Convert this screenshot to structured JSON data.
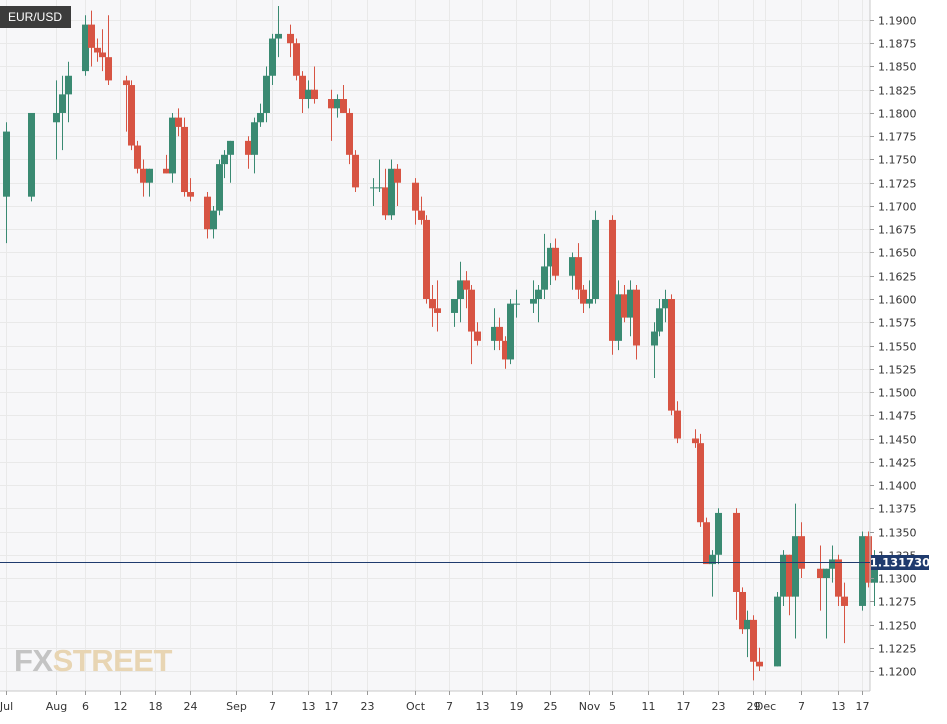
{
  "symbol": "EUR/USD",
  "logo": {
    "fx": "FX",
    "street": "STREET"
  },
  "last_price_label": "1.131730",
  "colors": {
    "up": "#3a8a72",
    "down": "#d75443",
    "grid": "#e9e9e9",
    "price_line": "#1f3b6e",
    "background": "#f7f7f9",
    "axis_text": "#333333"
  },
  "chart_data": {
    "type": "candlestick",
    "title": "",
    "xlabel": "",
    "ylabel": "",
    "ylim": [
      1.1185,
      1.1915
    ],
    "y_ticks": [
      1.19,
      1.1875,
      1.185,
      1.1825,
      1.18,
      1.1775,
      1.175,
      1.1725,
      1.17,
      1.1675,
      1.165,
      1.1625,
      1.16,
      1.1575,
      1.155,
      1.1525,
      1.15,
      1.1475,
      1.145,
      1.1425,
      1.14,
      1.1375,
      1.135,
      1.1325,
      1.13,
      1.1275,
      1.125,
      1.1225,
      1.12
    ],
    "y_tick_decimals": 4,
    "x_ticks": [
      {
        "label": "Jul",
        "date": "2018-07-30"
      },
      {
        "label": "Aug",
        "date": "2018-08-01"
      },
      {
        "label": "6",
        "date": "2018-08-06"
      },
      {
        "label": "12",
        "date": "2018-08-12"
      },
      {
        "label": "18",
        "date": "2018-08-18"
      },
      {
        "label": "24",
        "date": "2018-08-24"
      },
      {
        "label": "Sep",
        "date": "2018-09-01"
      },
      {
        "label": "7",
        "date": "2018-09-07"
      },
      {
        "label": "13",
        "date": "2018-09-13"
      },
      {
        "label": "17",
        "date": "2018-09-17"
      },
      {
        "label": "23",
        "date": "2018-09-23"
      },
      {
        "label": "Oct",
        "date": "2018-10-01"
      },
      {
        "label": "7",
        "date": "2018-10-07"
      },
      {
        "label": "13",
        "date": "2018-10-13"
      },
      {
        "label": "19",
        "date": "2018-10-19"
      },
      {
        "label": "25",
        "date": "2018-10-25"
      },
      {
        "label": "Nov",
        "date": "2018-11-01"
      },
      {
        "label": "5",
        "date": "2018-11-05"
      },
      {
        "label": "11",
        "date": "2018-11-11"
      },
      {
        "label": "17",
        "date": "2018-11-17"
      },
      {
        "label": "23",
        "date": "2018-11-23"
      },
      {
        "label": "29",
        "date": "2018-11-29"
      },
      {
        "label": "Dec",
        "date": "2018-12-01"
      },
      {
        "label": "7",
        "date": "2018-12-07"
      },
      {
        "label": "13",
        "date": "2018-12-13"
      },
      {
        "label": "17",
        "date": "2018-12-17"
      }
    ],
    "last_price": 1.13173,
    "candles": [
      {
        "date": "2018-07-30",
        "o": 1.171,
        "h": 1.179,
        "l": 1.166,
        "c": 1.178
      },
      {
        "date": "2018-07-31",
        "o": 1.171,
        "h": 1.18,
        "l": 1.1705,
        "c": 1.18
      },
      {
        "date": "2018-08-01",
        "o": 1.179,
        "h": 1.1835,
        "l": 1.175,
        "c": 1.18
      },
      {
        "date": "2018-08-02",
        "o": 1.18,
        "h": 1.184,
        "l": 1.176,
        "c": 1.182
      },
      {
        "date": "2018-08-03",
        "o": 1.182,
        "h": 1.1855,
        "l": 1.179,
        "c": 1.184
      },
      {
        "date": "2018-08-06",
        "o": 1.1845,
        "h": 1.1905,
        "l": 1.184,
        "c": 1.1895
      },
      {
        "date": "2018-08-07",
        "o": 1.1895,
        "h": 1.191,
        "l": 1.185,
        "c": 1.187
      },
      {
        "date": "2018-08-08",
        "o": 1.187,
        "h": 1.188,
        "l": 1.1855,
        "c": 1.1865
      },
      {
        "date": "2018-08-09",
        "o": 1.1865,
        "h": 1.189,
        "l": 1.1845,
        "c": 1.186
      },
      {
        "date": "2018-08-10",
        "o": 1.186,
        "h": 1.1905,
        "l": 1.183,
        "c": 1.1835
      },
      {
        "date": "2018-08-13",
        "o": 1.1835,
        "h": 1.184,
        "l": 1.178,
        "c": 1.183
      },
      {
        "date": "2018-08-14",
        "o": 1.183,
        "h": 1.1835,
        "l": 1.176,
        "c": 1.1765
      },
      {
        "date": "2018-08-15",
        "o": 1.1765,
        "h": 1.177,
        "l": 1.1735,
        "c": 1.174
      },
      {
        "date": "2018-08-16",
        "o": 1.174,
        "h": 1.175,
        "l": 1.171,
        "c": 1.1725
      },
      {
        "date": "2018-08-17",
        "o": 1.1725,
        "h": 1.174,
        "l": 1.171,
        "c": 1.174
      },
      {
        "date": "2018-08-20",
        "o": 1.174,
        "h": 1.1755,
        "l": 1.1735,
        "c": 1.1735
      },
      {
        "date": "2018-08-21",
        "o": 1.1735,
        "h": 1.18,
        "l": 1.1725,
        "c": 1.1795
      },
      {
        "date": "2018-08-22",
        "o": 1.1795,
        "h": 1.1805,
        "l": 1.1775,
        "c": 1.1785
      },
      {
        "date": "2018-08-23",
        "o": 1.1785,
        "h": 1.1795,
        "l": 1.171,
        "c": 1.1715
      },
      {
        "date": "2018-08-24",
        "o": 1.1715,
        "h": 1.173,
        "l": 1.1705,
        "c": 1.171
      },
      {
        "date": "2018-08-27",
        "o": 1.171,
        "h": 1.1715,
        "l": 1.1665,
        "c": 1.1675
      },
      {
        "date": "2018-08-28",
        "o": 1.1675,
        "h": 1.17,
        "l": 1.1665,
        "c": 1.1695
      },
      {
        "date": "2018-08-29",
        "o": 1.1695,
        "h": 1.175,
        "l": 1.169,
        "c": 1.1745
      },
      {
        "date": "2018-08-30",
        "o": 1.1745,
        "h": 1.176,
        "l": 1.173,
        "c": 1.1755
      },
      {
        "date": "2018-08-31",
        "o": 1.1755,
        "h": 1.177,
        "l": 1.1725,
        "c": 1.177
      },
      {
        "date": "2018-09-03",
        "o": 1.177,
        "h": 1.1775,
        "l": 1.174,
        "c": 1.1755
      },
      {
        "date": "2018-09-04",
        "o": 1.1755,
        "h": 1.1795,
        "l": 1.1735,
        "c": 1.179
      },
      {
        "date": "2018-09-05",
        "o": 1.179,
        "h": 1.181,
        "l": 1.1785,
        "c": 1.18
      },
      {
        "date": "2018-09-06",
        "o": 1.18,
        "h": 1.185,
        "l": 1.179,
        "c": 1.184
      },
      {
        "date": "2018-09-07",
        "o": 1.184,
        "h": 1.1885,
        "l": 1.183,
        "c": 1.188
      },
      {
        "date": "2018-09-08",
        "o": 1.188,
        "h": 1.1915,
        "l": 1.186,
        "c": 1.1885
      },
      {
        "date": "2018-09-10",
        "o": 1.1885,
        "h": 1.1895,
        "l": 1.186,
        "c": 1.1875
      },
      {
        "date": "2018-09-11",
        "o": 1.1875,
        "h": 1.188,
        "l": 1.1835,
        "c": 1.184
      },
      {
        "date": "2018-09-12",
        "o": 1.184,
        "h": 1.1845,
        "l": 1.18,
        "c": 1.1815
      },
      {
        "date": "2018-09-13",
        "o": 1.1815,
        "h": 1.1835,
        "l": 1.1805,
        "c": 1.1825
      },
      {
        "date": "2018-09-14",
        "o": 1.1825,
        "h": 1.185,
        "l": 1.181,
        "c": 1.1815
      },
      {
        "date": "2018-09-17",
        "o": 1.1815,
        "h": 1.1825,
        "l": 1.177,
        "c": 1.1805
      },
      {
        "date": "2018-09-18",
        "o": 1.1805,
        "h": 1.182,
        "l": 1.1795,
        "c": 1.1815
      },
      {
        "date": "2018-09-19",
        "o": 1.1815,
        "h": 1.183,
        "l": 1.18,
        "c": 1.18
      },
      {
        "date": "2018-09-20",
        "o": 1.18,
        "h": 1.1805,
        "l": 1.1745,
        "c": 1.1755
      },
      {
        "date": "2018-09-21",
        "o": 1.1755,
        "h": 1.176,
        "l": 1.1715,
        "c": 1.172
      },
      {
        "date": "2018-09-24",
        "o": 1.172,
        "h": 1.173,
        "l": 1.17,
        "c": 1.172
      },
      {
        "date": "2018-09-25",
        "o": 1.172,
        "h": 1.175,
        "l": 1.1715,
        "c": 1.172
      },
      {
        "date": "2018-09-26",
        "o": 1.172,
        "h": 1.174,
        "l": 1.1685,
        "c": 1.169
      },
      {
        "date": "2018-09-27",
        "o": 1.169,
        "h": 1.175,
        "l": 1.1685,
        "c": 1.174
      },
      {
        "date": "2018-09-28",
        "o": 1.174,
        "h": 1.1745,
        "l": 1.17,
        "c": 1.1725
      },
      {
        "date": "2018-10-01",
        "o": 1.1725,
        "h": 1.173,
        "l": 1.168,
        "c": 1.1695
      },
      {
        "date": "2018-10-02",
        "o": 1.1695,
        "h": 1.171,
        "l": 1.168,
        "c": 1.1685
      },
      {
        "date": "2018-10-03",
        "o": 1.1685,
        "h": 1.169,
        "l": 1.1595,
        "c": 1.16
      },
      {
        "date": "2018-10-04",
        "o": 1.16,
        "h": 1.1615,
        "l": 1.157,
        "c": 1.159
      },
      {
        "date": "2018-10-05",
        "o": 1.159,
        "h": 1.162,
        "l": 1.1565,
        "c": 1.1585
      },
      {
        "date": "2018-10-08",
        "o": 1.1585,
        "h": 1.16,
        "l": 1.157,
        "c": 1.16
      },
      {
        "date": "2018-10-09",
        "o": 1.16,
        "h": 1.164,
        "l": 1.1575,
        "c": 1.162
      },
      {
        "date": "2018-10-10",
        "o": 1.162,
        "h": 1.163,
        "l": 1.159,
        "c": 1.161
      },
      {
        "date": "2018-10-11",
        "o": 1.161,
        "h": 1.1615,
        "l": 1.153,
        "c": 1.1565
      },
      {
        "date": "2018-10-12",
        "o": 1.1565,
        "h": 1.1575,
        "l": 1.155,
        "c": 1.1555
      },
      {
        "date": "2018-10-15",
        "o": 1.1555,
        "h": 1.159,
        "l": 1.1545,
        "c": 1.157
      },
      {
        "date": "2018-10-16",
        "o": 1.157,
        "h": 1.158,
        "l": 1.1545,
        "c": 1.1555
      },
      {
        "date": "2018-10-17",
        "o": 1.1555,
        "h": 1.156,
        "l": 1.1525,
        "c": 1.1535
      },
      {
        "date": "2018-10-18",
        "o": 1.1535,
        "h": 1.16,
        "l": 1.153,
        "c": 1.1595
      },
      {
        "date": "2018-10-19",
        "o": 1.1595,
        "h": 1.161,
        "l": 1.158,
        "c": 1.1595
      },
      {
        "date": "2018-10-22",
        "o": 1.1595,
        "h": 1.162,
        "l": 1.1585,
        "c": 1.16
      },
      {
        "date": "2018-10-23",
        "o": 1.16,
        "h": 1.1615,
        "l": 1.1575,
        "c": 1.161
      },
      {
        "date": "2018-10-24",
        "o": 1.161,
        "h": 1.167,
        "l": 1.16,
        "c": 1.1635
      },
      {
        "date": "2018-10-25",
        "o": 1.1635,
        "h": 1.166,
        "l": 1.1615,
        "c": 1.1655
      },
      {
        "date": "2018-10-26",
        "o": 1.1655,
        "h": 1.1665,
        "l": 1.162,
        "c": 1.1625
      },
      {
        "date": "2018-10-29",
        "o": 1.1625,
        "h": 1.165,
        "l": 1.161,
        "c": 1.1645
      },
      {
        "date": "2018-10-30",
        "o": 1.1645,
        "h": 1.166,
        "l": 1.16,
        "c": 1.161
      },
      {
        "date": "2018-10-31",
        "o": 1.161,
        "h": 1.1615,
        "l": 1.1585,
        "c": 1.1595
      },
      {
        "date": "2018-11-01",
        "o": 1.1595,
        "h": 1.162,
        "l": 1.159,
        "c": 1.16
      },
      {
        "date": "2018-11-02",
        "o": 1.16,
        "h": 1.1695,
        "l": 1.1595,
        "c": 1.1685
      },
      {
        "date": "2018-11-05",
        "o": 1.1685,
        "h": 1.169,
        "l": 1.154,
        "c": 1.1555
      },
      {
        "date": "2018-11-06",
        "o": 1.1555,
        "h": 1.162,
        "l": 1.1545,
        "c": 1.1605
      },
      {
        "date": "2018-11-07",
        "o": 1.1605,
        "h": 1.1615,
        "l": 1.1575,
        "c": 1.158
      },
      {
        "date": "2018-11-08",
        "o": 1.158,
        "h": 1.162,
        "l": 1.156,
        "c": 1.161
      },
      {
        "date": "2018-11-09",
        "o": 1.161,
        "h": 1.1615,
        "l": 1.1535,
        "c": 1.155
      },
      {
        "date": "2018-11-12",
        "o": 1.155,
        "h": 1.1575,
        "l": 1.1515,
        "c": 1.1565
      },
      {
        "date": "2018-11-13",
        "o": 1.1565,
        "h": 1.16,
        "l": 1.156,
        "c": 1.159
      },
      {
        "date": "2018-11-14",
        "o": 1.159,
        "h": 1.161,
        "l": 1.1575,
        "c": 1.16
      },
      {
        "date": "2018-11-15",
        "o": 1.16,
        "h": 1.1605,
        "l": 1.1475,
        "c": 1.148
      },
      {
        "date": "2018-11-16",
        "o": 1.148,
        "h": 1.149,
        "l": 1.1445,
        "c": 1.145
      },
      {
        "date": "2018-11-19",
        "o": 1.145,
        "h": 1.146,
        "l": 1.144,
        "c": 1.1445
      },
      {
        "date": "2018-11-20",
        "o": 1.1445,
        "h": 1.1455,
        "l": 1.1355,
        "c": 1.136
      },
      {
        "date": "2018-11-21",
        "o": 1.136,
        "h": 1.1365,
        "l": 1.132,
        "c": 1.1315
      },
      {
        "date": "2018-11-22",
        "o": 1.1315,
        "h": 1.133,
        "l": 1.128,
        "c": 1.1325
      },
      {
        "date": "2018-11-23",
        "o": 1.1325,
        "h": 1.1375,
        "l": 1.1315,
        "c": 1.137
      },
      {
        "date": "2018-11-26",
        "o": 1.137,
        "h": 1.1375,
        "l": 1.1255,
        "c": 1.1285
      },
      {
        "date": "2018-11-27",
        "o": 1.1285,
        "h": 1.129,
        "l": 1.124,
        "c": 1.1245
      },
      {
        "date": "2018-11-28",
        "o": 1.1245,
        "h": 1.1265,
        "l": 1.1215,
        "c": 1.1255
      },
      {
        "date": "2018-11-29",
        "o": 1.1255,
        "h": 1.126,
        "l": 1.119,
        "c": 1.121
      },
      {
        "date": "2018-11-30",
        "o": 1.121,
        "h": 1.1225,
        "l": 1.12,
        "c": 1.1205
      },
      {
        "date": "2018-12-03",
        "o": 1.1205,
        "h": 1.1285,
        "l": 1.1205,
        "c": 1.128
      },
      {
        "date": "2018-12-04",
        "o": 1.128,
        "h": 1.133,
        "l": 1.127,
        "c": 1.1325
      },
      {
        "date": "2018-12-05",
        "o": 1.1325,
        "h": 1.1325,
        "l": 1.126,
        "c": 1.128
      },
      {
        "date": "2018-12-06",
        "o": 1.128,
        "h": 1.138,
        "l": 1.1235,
        "c": 1.1345
      },
      {
        "date": "2018-12-07",
        "o": 1.1345,
        "h": 1.136,
        "l": 1.13,
        "c": 1.131
      },
      {
        "date": "2018-12-10",
        "o": 1.131,
        "h": 1.1335,
        "l": 1.1265,
        "c": 1.13
      },
      {
        "date": "2018-12-11",
        "o": 1.13,
        "h": 1.131,
        "l": 1.1235,
        "c": 1.131
      },
      {
        "date": "2018-12-12",
        "o": 1.131,
        "h": 1.1335,
        "l": 1.1295,
        "c": 1.132
      },
      {
        "date": "2018-12-13",
        "o": 1.132,
        "h": 1.1325,
        "l": 1.127,
        "c": 1.128
      },
      {
        "date": "2018-12-14",
        "o": 1.128,
        "h": 1.1295,
        "l": 1.123,
        "c": 1.127
      },
      {
        "date": "2018-12-17",
        "o": 1.127,
        "h": 1.135,
        "l": 1.1265,
        "c": 1.1345
      },
      {
        "date": "2018-12-18",
        "o": 1.1345,
        "h": 1.135,
        "l": 1.129,
        "c": 1.1295
      },
      {
        "date": "2018-12-19",
        "o": 1.1295,
        "h": 1.133,
        "l": 1.127,
        "c": 1.1317
      }
    ]
  }
}
